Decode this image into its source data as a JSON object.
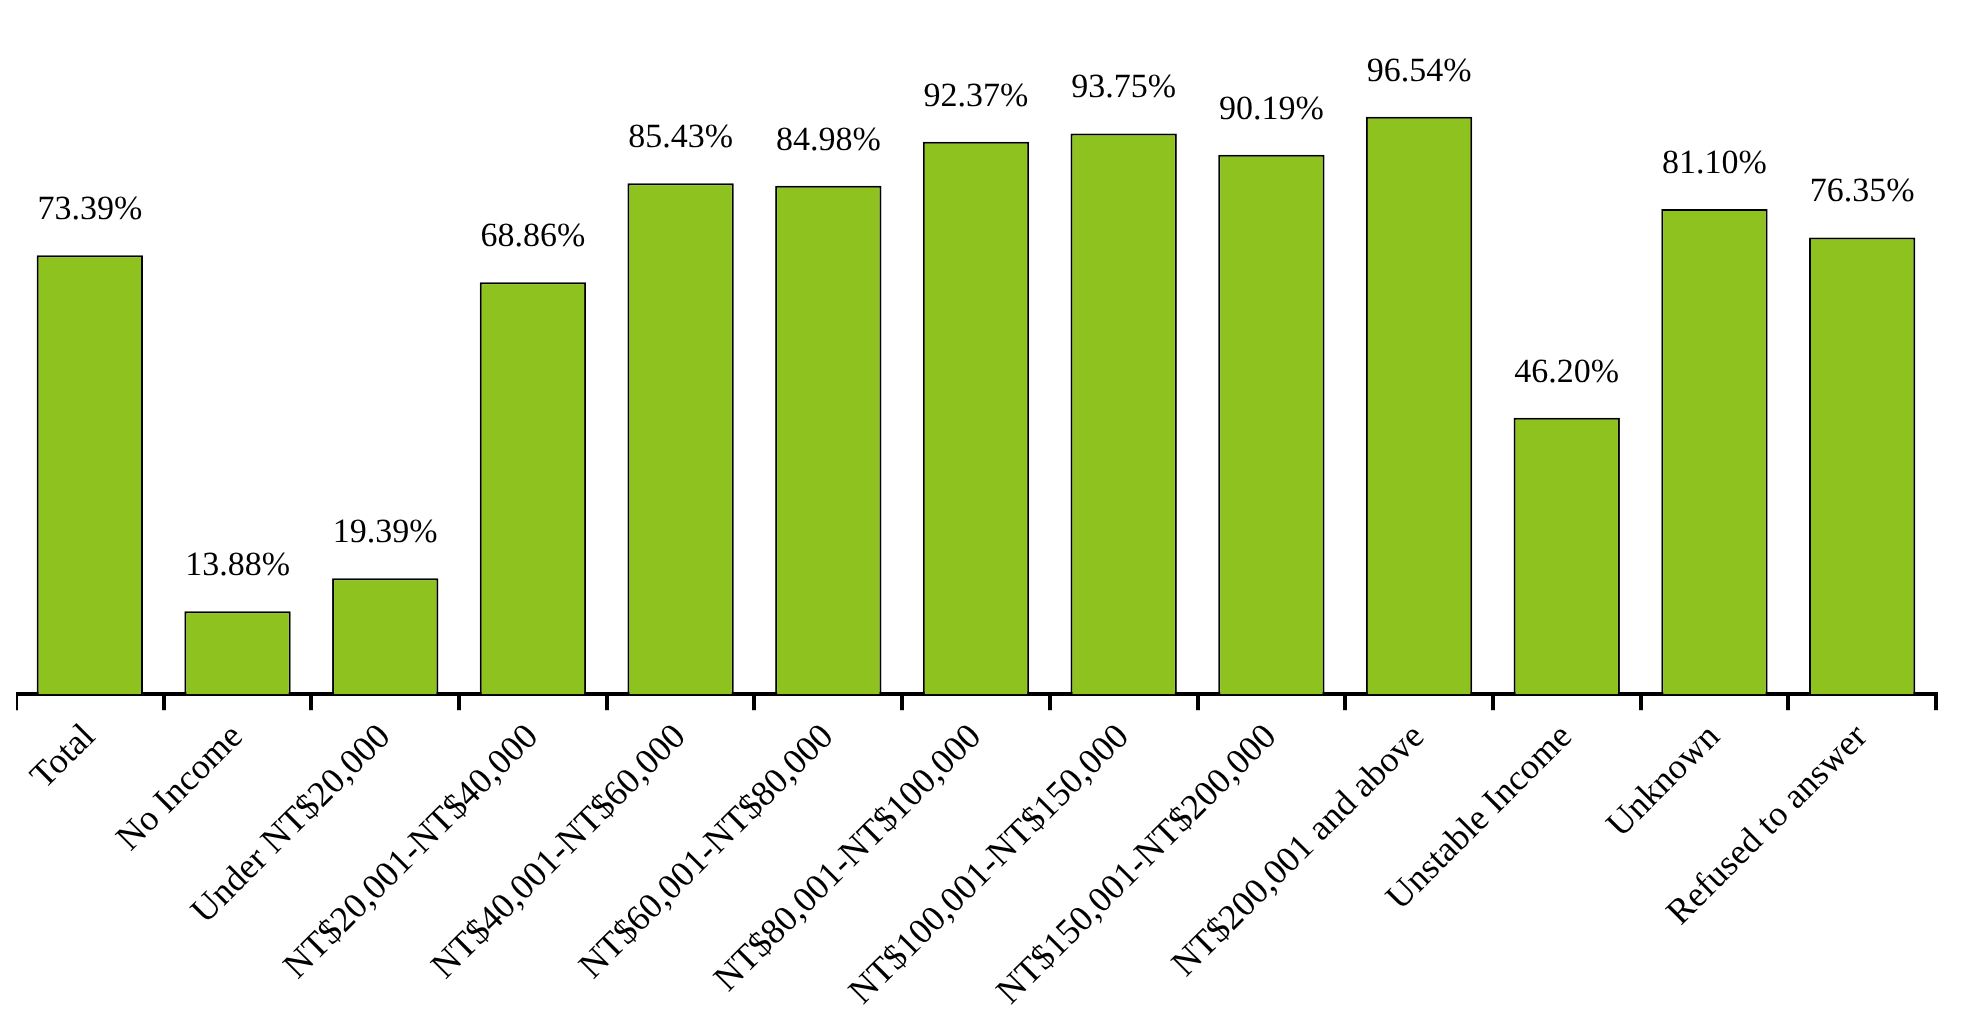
{
  "chart_data": {
    "type": "bar",
    "categories": [
      "Total",
      "No Income",
      "Under NT$20,000",
      "NT$20,001-NT$40,000",
      "NT$40,001-NT$60,000",
      "NT$60,001-NT$80,000",
      "NT$80,001-NT$100,000",
      "NT$100,001-NT$150,000",
      "NT$150,001-NT$200,000",
      "NT$200,001 and above",
      "Unstable Income",
      "Unknown",
      "Refused to answer"
    ],
    "values": [
      73.39,
      13.88,
      19.39,
      68.86,
      85.43,
      84.98,
      92.37,
      93.75,
      90.19,
      96.54,
      46.2,
      81.1,
      76.35
    ],
    "value_labels": [
      "73.39%",
      "13.88%",
      "19.39%",
      "68.86%",
      "85.43%",
      "84.98%",
      "92.37%",
      "93.75%",
      "90.19%",
      "96.54%",
      "46.20%",
      "81.10%",
      "76.35%"
    ],
    "color": "#8dc21f",
    "grid": false,
    "legend": false
  }
}
